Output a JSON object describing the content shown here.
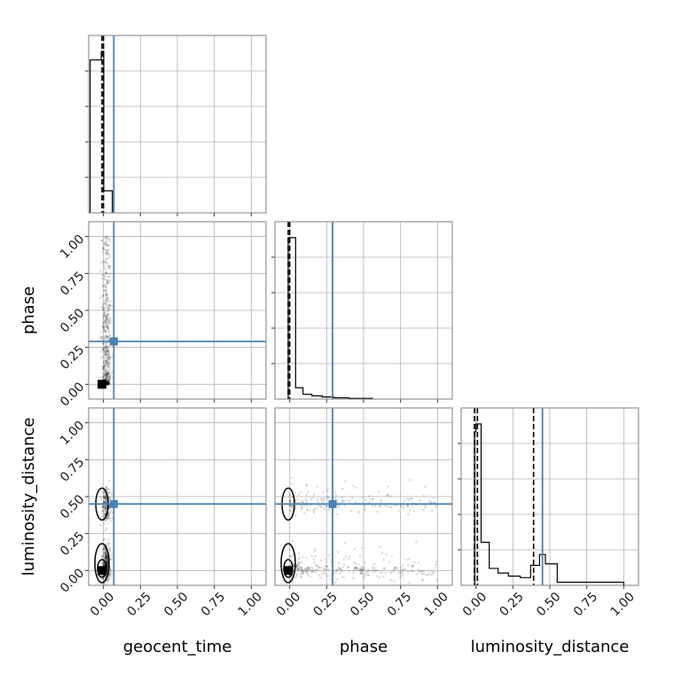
{
  "chart_data": {
    "type": "corner",
    "parameters": [
      "geocent_time",
      "phase",
      "luminosity_distance"
    ],
    "axis_range": [
      -0.1,
      1.1
    ],
    "tick_values": [
      0.0,
      0.25,
      0.5,
      0.75,
      1.0
    ],
    "tick_labels": [
      "0.00",
      "0.25",
      "0.50",
      "0.75",
      "1.00"
    ],
    "grid": true,
    "colors": {
      "truth": "#4682b4",
      "hist": "#000000",
      "points": "#000000",
      "grid": "#b0b0b0",
      "frame": "#7f7f7f"
    },
    "truth_values": {
      "geocent_time": 0.07,
      "phase": 0.29,
      "luminosity_distance": 0.45
    },
    "quantiles": {
      "geocent_time": [
        -0.01,
        0.0
      ],
      "phase": [
        -0.01,
        0.0
      ],
      "luminosity_distance": [
        -0.01,
        0.01,
        0.39
      ]
    },
    "histograms": {
      "geocent_time": {
        "edges": [
          -0.09,
          -0.015,
          0.002,
          0.06
        ],
        "counts": [
          0.9,
          0.95,
          0.13
        ]
      },
      "phase": {
        "edges": [
          -0.01,
          0.04,
          0.09,
          0.15,
          0.22,
          0.3,
          0.4,
          0.56
        ],
        "counts": [
          1.0,
          0.07,
          0.03,
          0.02,
          0.013,
          0.008,
          0.004
        ]
      },
      "luminosity_distance": {
        "edges": [
          -0.01,
          0.0,
          0.035,
          0.09,
          0.15,
          0.22,
          0.3,
          0.37,
          0.43,
          0.47,
          0.55,
          1.0
        ],
        "counts": [
          1.0,
          1.05,
          0.28,
          0.11,
          0.08,
          0.06,
          0.05,
          0.13,
          0.2,
          0.14,
          0.02
        ]
      }
    },
    "samples": {
      "geocent_time_vs_phase": {
        "x_center": 0.02,
        "x_spread": 0.025,
        "y_max": 1.0,
        "n": 500
      },
      "geocent_time_vs_luminosity_distance": {
        "x_center": 0.02,
        "x_spread": 0.025,
        "y_clusters": [
          0.0,
          0.45
        ],
        "n": 500
      },
      "phase_vs_luminosity_distance": {
        "x_max": 1.0,
        "y_clusters": [
          0.0,
          0.45
        ],
        "n": 500
      }
    }
  }
}
